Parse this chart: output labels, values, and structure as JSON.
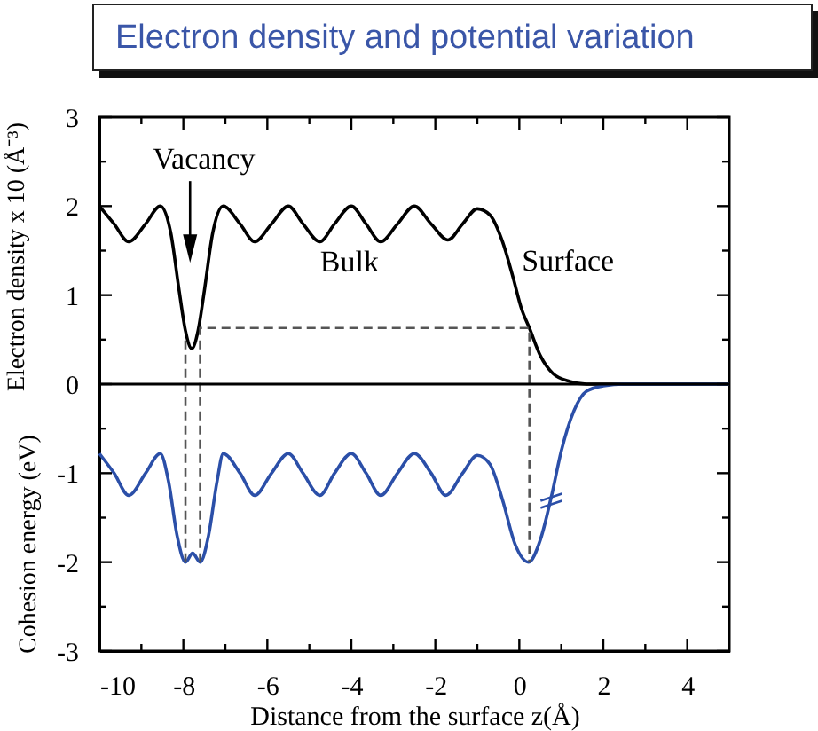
{
  "chart_data": {
    "type": "line",
    "title": "Electron density and potential variation",
    "xlabel": "Distance from the surface z(Å)",
    "ylabel": "Electron density x 10 (Å⁻³)",
    "xlim": [
      -10,
      5
    ],
    "ylim": [
      -3,
      3
    ],
    "xticks": [
      -10,
      {
        "value": -9,
        "label": null
      },
      -8,
      {
        "value": -7,
        "label": null
      },
      -6,
      {
        "value": -5,
        "label": null
      },
      -4,
      {
        "value": -3,
        "label": null
      },
      -2,
      {
        "value": -1,
        "label": null
      },
      0,
      {
        "value": 1,
        "label": null
      },
      2,
      {
        "value": 3,
        "label": null
      },
      4
    ],
    "yticks": [
      -3,
      {
        "value": -2.5,
        "label": null
      },
      -2,
      {
        "value": -1.5,
        "label": null
      },
      -1,
      {
        "value": -0.5,
        "label": null
      },
      0,
      {
        "value": 0.5,
        "label": null
      },
      1,
      {
        "value": 1.5,
        "label": null
      },
      2,
      {
        "value": 2.5,
        "label": null
      },
      3
    ],
    "series": [
      {
        "type": "line",
        "color": "#000000",
        "x": [
          -10,
          -9.65,
          -9.3,
          -8.9,
          -8.55,
          -8.3,
          -8.1,
          -7.95,
          -7.8,
          -7.65,
          -7.5,
          -7.3,
          -7.05,
          -6.65,
          -6.3,
          -5.9,
          -5.5,
          -5.15,
          -4.75,
          -4.4,
          -4,
          -3.65,
          -3.3,
          -2.9,
          -2.5,
          -2.1,
          -1.7,
          -1.35,
          -1,
          -0.7,
          -0.4,
          -0.15,
          0.05,
          0.24,
          0.5,
          0.8,
          1.2,
          1.6,
          2.5,
          5
        ],
        "values": [
          2,
          1.8,
          1.6,
          1.8,
          2,
          1.7,
          1.05,
          0.6,
          0.4,
          0.6,
          1.05,
          1.7,
          2,
          1.8,
          1.6,
          1.8,
          2,
          1.8,
          1.6,
          1.8,
          2,
          1.8,
          1.6,
          1.8,
          2,
          1.8,
          1.62,
          1.8,
          1.97,
          1.9,
          1.6,
          1.2,
          0.85,
          0.63,
          0.32,
          0.12,
          0.03,
          0,
          0,
          0
        ]
      },
      {
        "type": "line",
        "color": "#2b4fa8",
        "x": [
          -10,
          -9.65,
          -9.3,
          -8.9,
          -8.55,
          -8.35,
          -8.15,
          -7.95,
          -7.78,
          -7.6,
          -7.4,
          -7.2,
          -7.05,
          -6.65,
          -6.3,
          -5.9,
          -5.5,
          -5.15,
          -4.75,
          -4.4,
          -4,
          -3.65,
          -3.3,
          -2.9,
          -2.5,
          -2.1,
          -1.75,
          -1.35,
          -1,
          -0.7,
          -0.4,
          -0.1,
          0.22,
          0.5,
          0.76,
          1,
          1.3,
          1.6,
          2,
          2.5,
          5
        ],
        "values": [
          -0.78,
          -1,
          -1.25,
          -1,
          -0.78,
          -1.1,
          -1.7,
          -2,
          -1.9,
          -2,
          -1.7,
          -1.1,
          -0.78,
          -1,
          -1.25,
          -1,
          -0.78,
          -1,
          -1.25,
          -1,
          -0.78,
          -1,
          -1.25,
          -1,
          -0.78,
          -1,
          -1.25,
          -1,
          -0.8,
          -0.9,
          -1.3,
          -1.8,
          -2,
          -1.75,
          -1.27,
          -0.75,
          -0.3,
          -0.08,
          -0.02,
          0,
          0
        ]
      },
      {
        "type": "line",
        "color": "#555555",
        "line_style": "dashed",
        "x": [
          -7.95,
          -7.95
        ],
        "values": [
          -2,
          0.55
        ]
      },
      {
        "type": "line",
        "color": "#555555",
        "line_style": "dashed",
        "x": [
          -7.6,
          -7.6,
          0.24,
          0.24
        ],
        "values": [
          -2,
          0.63,
          0.63,
          -2
        ]
      }
    ],
    "ref_lines": [
      {
        "axis": "y",
        "value": 0,
        "color": "#000000"
      }
    ],
    "annotations": [
      "Vacancy",
      "Bulk",
      "Surface",
      "Cohesion energy (eV)"
    ]
  }
}
